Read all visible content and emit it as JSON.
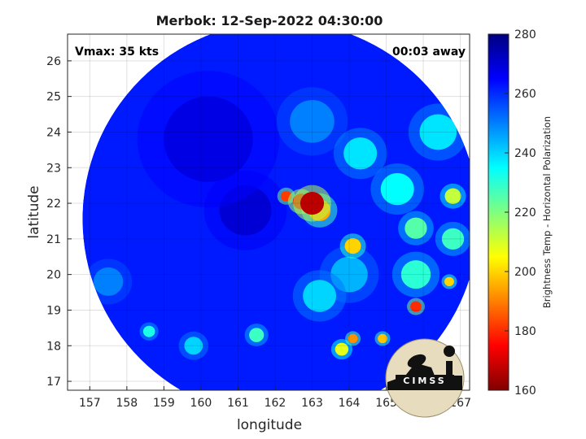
{
  "chart_data": {
    "type": "heatmap",
    "title": "Merbok: 12-Sep-2022 04:30:00",
    "xlabel": "longitude",
    "ylabel": "latitude",
    "xlim": [
      156.4,
      167.25
    ],
    "ylim": [
      16.75,
      26.75
    ],
    "x_ticks": [
      157,
      158,
      159,
      160,
      161,
      162,
      163,
      164,
      165,
      166,
      167
    ],
    "y_ticks": [
      17,
      18,
      19,
      20,
      21,
      22,
      23,
      24,
      25,
      26
    ],
    "grid": true,
    "annotations": {
      "vmax": "Vmax: 35 kts",
      "time_offset": "00:03 away"
    },
    "swath": {
      "center": [
        162.15,
        21.55
      ],
      "radius_deg": 5.45
    },
    "background_level": 262,
    "features": [
      {
        "lon": 163.0,
        "lat": 22.0,
        "value": 167,
        "spread": 0.32
      },
      {
        "lon": 162.7,
        "lat": 22.05,
        "value": 172,
        "spread": 0.22
      },
      {
        "lon": 162.3,
        "lat": 22.2,
        "value": 182,
        "spread": 0.15
      },
      {
        "lon": 163.2,
        "lat": 21.8,
        "value": 195,
        "spread": 0.3
      },
      {
        "lon": 164.1,
        "lat": 20.8,
        "value": 200,
        "spread": 0.22
      },
      {
        "lon": 165.8,
        "lat": 19.1,
        "value": 180,
        "spread": 0.15
      },
      {
        "lon": 166.7,
        "lat": 19.8,
        "value": 200,
        "spread": 0.13
      },
      {
        "lon": 164.1,
        "lat": 18.2,
        "value": 192,
        "spread": 0.13
      },
      {
        "lon": 164.9,
        "lat": 18.2,
        "value": 198,
        "spread": 0.13
      },
      {
        "lon": 163.8,
        "lat": 17.9,
        "value": 208,
        "spread": 0.18
      },
      {
        "lon": 166.8,
        "lat": 22.2,
        "value": 212,
        "spread": 0.22
      },
      {
        "lon": 165.8,
        "lat": 21.3,
        "value": 225,
        "spread": 0.3
      },
      {
        "lon": 166.8,
        "lat": 21.0,
        "value": 228,
        "spread": 0.3
      },
      {
        "lon": 165.3,
        "lat": 22.4,
        "value": 235,
        "spread": 0.45
      },
      {
        "lon": 164.3,
        "lat": 23.4,
        "value": 238,
        "spread": 0.45
      },
      {
        "lon": 165.8,
        "lat": 20.0,
        "value": 230,
        "spread": 0.4
      },
      {
        "lon": 163.2,
        "lat": 19.4,
        "value": 240,
        "spread": 0.45
      },
      {
        "lon": 161.5,
        "lat": 18.3,
        "value": 228,
        "spread": 0.2
      },
      {
        "lon": 158.6,
        "lat": 18.4,
        "value": 232,
        "spread": 0.16
      },
      {
        "lon": 159.8,
        "lat": 18.0,
        "value": 240,
        "spread": 0.25
      },
      {
        "lon": 166.4,
        "lat": 24.0,
        "value": 238,
        "spread": 0.5
      },
      {
        "lon": 157.5,
        "lat": 19.8,
        "value": 250,
        "spread": 0.4
      },
      {
        "lon": 163.0,
        "lat": 24.3,
        "value": 250,
        "spread": 0.6
      },
      {
        "lon": 164.0,
        "lat": 20.0,
        "value": 244,
        "spread": 0.5
      },
      {
        "lon": 160.2,
        "lat": 23.8,
        "value": 268,
        "spread": 1.2
      },
      {
        "lon": 161.2,
        "lat": 21.8,
        "value": 270,
        "spread": 0.7
      }
    ],
    "colorbar": {
      "label": "Brightness Temp - Horizontal Polarization",
      "range": [
        160,
        280
      ],
      "ticks": [
        160,
        180,
        200,
        220,
        240,
        260,
        280
      ],
      "colormap": "jet"
    },
    "logo_text": "CIMSS"
  }
}
